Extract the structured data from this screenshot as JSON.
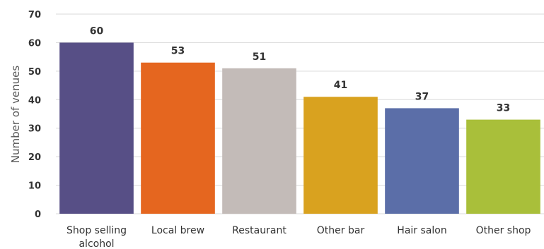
{
  "chart_data": {
    "type": "bar",
    "categories": [
      [
        "Shop selling",
        "alcohol"
      ],
      [
        "Local brew"
      ],
      [
        "Restaurant"
      ],
      [
        "Other bar"
      ],
      [
        "Hair salon"
      ],
      [
        "Other shop"
      ]
    ],
    "values": [
      60,
      53,
      51,
      41,
      37,
      33
    ],
    "ylabel": "Number of venues",
    "ylim": [
      0,
      70
    ],
    "yticks": [
      0,
      10,
      20,
      30,
      40,
      50,
      60,
      70
    ],
    "grid": true,
    "data_labels": true,
    "colors": [
      "#574f86",
      "#e5661f",
      "#c3bbb8",
      "#d9a21f",
      "#5b6ea8",
      "#a9bf3a"
    ]
  }
}
